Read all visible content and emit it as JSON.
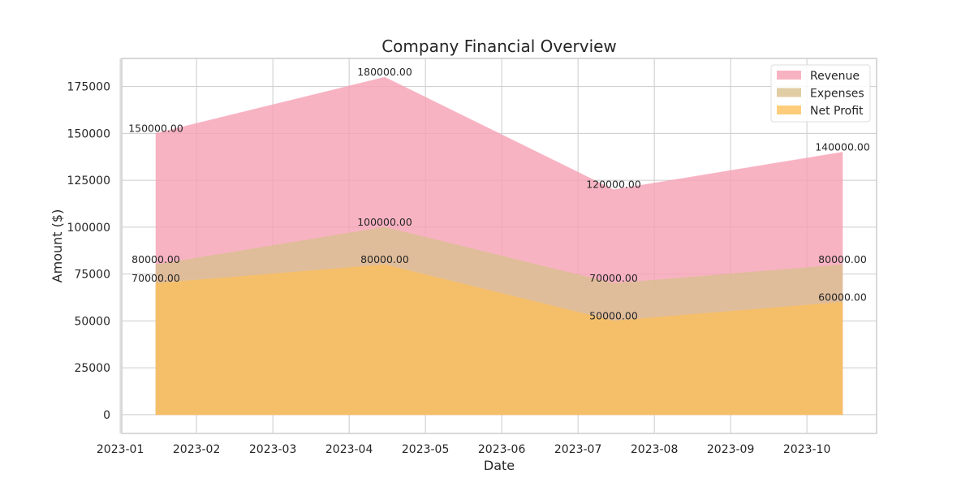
{
  "chart_data": {
    "type": "area",
    "title": "Company Financial Overview",
    "xlabel": "Date",
    "ylabel": "Amount ($)",
    "x_ticks": [
      "2023-01",
      "2023-02",
      "2023-03",
      "2023-04",
      "2023-05",
      "2023-06",
      "2023-07",
      "2023-08",
      "2023-09",
      "2023-10"
    ],
    "y_ticks": [
      0,
      25000,
      50000,
      75000,
      100000,
      125000,
      150000,
      175000
    ],
    "ylim": [
      -10000,
      190000
    ],
    "x": [
      "2023-01-15",
      "2023-04-15",
      "2023-07-15",
      "2023-10-15"
    ],
    "grid": true,
    "legend_position": "top-right",
    "series": [
      {
        "name": "Revenue",
        "values": [
          150000,
          180000,
          120000,
          140000
        ],
        "labels": [
          "150000.00",
          "180000.00",
          "120000.00",
          "140000.00"
        ],
        "color": "#f6a0b4"
      },
      {
        "name": "Expenses",
        "values": [
          80000,
          100000,
          70000,
          80000
        ],
        "labels": [
          "80000.00",
          "100000.00",
          "70000.00",
          "80000.00"
        ],
        "color": "#d8c08c"
      },
      {
        "name": "Net Profit",
        "values": [
          70000,
          80000,
          50000,
          60000
        ],
        "labels": [
          "70000.00",
          "80000.00",
          "50000.00",
          "60000.00"
        ],
        "color": "#fcc05a"
      }
    ]
  }
}
